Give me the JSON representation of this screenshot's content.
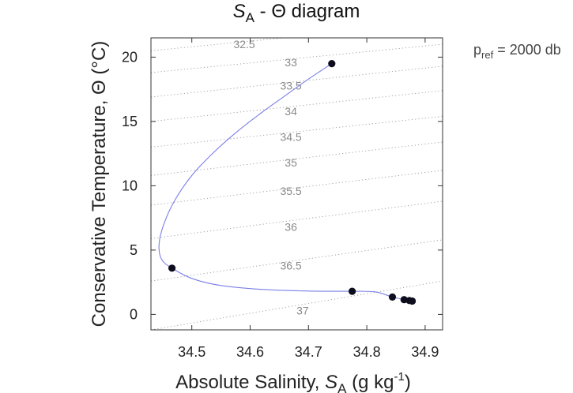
{
  "chart_data": {
    "type": "scatter",
    "title": {
      "pre": "S",
      "sub": "A",
      "post": " - Θ  diagram"
    },
    "xlabel": {
      "pre": "Absolute Salinity, ",
      "ital": "S",
      "sub": "A",
      "post": " (g kg",
      "sup": "-1",
      "end": ")"
    },
    "ylabel": "Conservative Temperature,  Θ (°C)",
    "pref": {
      "pre": "p",
      "sub": "ref",
      "post": " = 2000 db"
    },
    "xlim": [
      34.43,
      34.93
    ],
    "ylim": [
      -1.2,
      21.5
    ],
    "xticks": [
      34.5,
      34.6,
      34.7,
      34.8,
      34.9
    ],
    "xtick_labels": [
      "34.5",
      "34.6",
      "34.7",
      "34.8",
      "34.9"
    ],
    "yticks": [
      0,
      5,
      10,
      15,
      20
    ],
    "ytick_labels": [
      "0",
      "5",
      "10",
      "15",
      "20"
    ],
    "grid": false,
    "points": [
      {
        "x": 34.74,
        "y": 19.5
      },
      {
        "x": 34.466,
        "y": 3.6
      },
      {
        "x": 34.775,
        "y": 1.8
      },
      {
        "x": 34.844,
        "y": 1.35
      },
      {
        "x": 34.864,
        "y": 1.15
      },
      {
        "x": 34.873,
        "y": 1.08
      },
      {
        "x": 34.878,
        "y": 1.04
      }
    ],
    "curve": [
      [
        34.74,
        19.5
      ],
      [
        34.7,
        18.3
      ],
      [
        34.66,
        17.0
      ],
      [
        34.62,
        15.7
      ],
      [
        34.58,
        14.3
      ],
      [
        34.54,
        12.7
      ],
      [
        34.5,
        10.8
      ],
      [
        34.47,
        8.8
      ],
      [
        34.452,
        7.0
      ],
      [
        34.444,
        5.5
      ],
      [
        34.448,
        4.3
      ],
      [
        34.466,
        3.6
      ],
      [
        34.5,
        2.8
      ],
      [
        34.55,
        2.25
      ],
      [
        34.62,
        1.95
      ],
      [
        34.7,
        1.82
      ],
      [
        34.775,
        1.8
      ],
      [
        34.815,
        1.75
      ],
      [
        34.844,
        1.35
      ],
      [
        34.864,
        1.15
      ],
      [
        34.873,
        1.08
      ],
      [
        34.878,
        1.04
      ]
    ],
    "curve_color": "#7b7fe8",
    "point_color": "#0d0d1e",
    "contours": [
      {
        "label": "32.5",
        "y_left": 20.5,
        "y_right": 22.7,
        "lx": 34.59,
        "ly": 21.0
      },
      {
        "label": "33",
        "y_left": 18.8,
        "y_right": 21.0,
        "lx": 34.67,
        "ly": 19.6
      },
      {
        "label": "33.5",
        "y_left": 16.9,
        "y_right": 19.3,
        "lx": 34.67,
        "ly": 17.8
      },
      {
        "label": "34",
        "y_left": 15.0,
        "y_right": 17.4,
        "lx": 34.67,
        "ly": 15.8
      },
      {
        "label": "34.5",
        "y_left": 13.0,
        "y_right": 15.4,
        "lx": 34.67,
        "ly": 13.8
      },
      {
        "label": "35",
        "y_left": 10.8,
        "y_right": 13.4,
        "lx": 34.67,
        "ly": 11.8
      },
      {
        "label": "35.5",
        "y_left": 8.5,
        "y_right": 11.2,
        "lx": 34.67,
        "ly": 9.6
      },
      {
        "label": "36",
        "y_left": 5.9,
        "y_right": 8.8,
        "lx": 34.67,
        "ly": 6.8
      },
      {
        "label": "36.5",
        "y_left": 2.6,
        "y_right": 5.8,
        "lx": 34.67,
        "ly": 3.8
      },
      {
        "label": "37",
        "y_left": -1.2,
        "y_right": 2.6,
        "lx": 34.69,
        "ly": 0.3
      }
    ]
  }
}
